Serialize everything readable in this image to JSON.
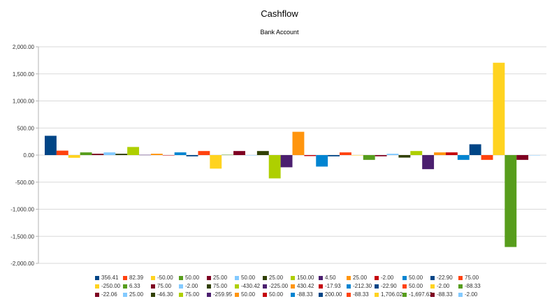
{
  "chart_data": {
    "type": "bar",
    "title": "Cashflow",
    "subtitle": "Bank Account",
    "ylim": [
      -2000,
      2000
    ],
    "yticks": [
      2000,
      1500,
      1000,
      500,
      0,
      -500,
      -1000,
      -1500,
      -2000
    ],
    "ytick_labels": [
      "2,000.00",
      "1,500.00",
      "1,000.00",
      "500.00",
      "0.00",
      "-500.00",
      "-1,000.00",
      "-1,500.00",
      "-2,000.00"
    ],
    "grid": true,
    "legend_position": "bottom",
    "palette": [
      "#004586",
      "#ff420e",
      "#ffd320",
      "#579d1c",
      "#7e0021",
      "#83caff",
      "#314004",
      "#aecf00",
      "#4b1f6f",
      "#ff950e",
      "#c5000b",
      "#0084d1"
    ],
    "series": [
      {
        "name": "356.41",
        "value": 356.41
      },
      {
        "name": "82.39",
        "value": 82.39
      },
      {
        "name": "-50.00",
        "value": -50
      },
      {
        "name": "50.00",
        "value": 50
      },
      {
        "name": "25.00",
        "value": 25
      },
      {
        "name": "50.00",
        "value": 50
      },
      {
        "name": "25.00",
        "value": 25
      },
      {
        "name": "150.00",
        "value": 150
      },
      {
        "name": "4.50",
        "value": 4.5
      },
      {
        "name": "25.00",
        "value": 25
      },
      {
        "name": "-2.00",
        "value": -2
      },
      {
        "name": "50.00",
        "value": 50
      },
      {
        "name": "-22.90",
        "value": -22.9
      },
      {
        "name": "75.00",
        "value": 75
      },
      {
        "name": "-250.00",
        "value": -250
      },
      {
        "name": "6.33",
        "value": 6.33
      },
      {
        "name": "75.00",
        "value": 75
      },
      {
        "name": "-2.00",
        "value": -2
      },
      {
        "name": "75.00",
        "value": 75
      },
      {
        "name": "-430.42",
        "value": -430.42
      },
      {
        "name": "-225.00",
        "value": -225
      },
      {
        "name": "430.42",
        "value": 430.42
      },
      {
        "name": "-17.93",
        "value": -17.93
      },
      {
        "name": "-212.30",
        "value": -212.3
      },
      {
        "name": "-22.90",
        "value": -22.9
      },
      {
        "name": "50.00",
        "value": 50
      },
      {
        "name": "-2.00",
        "value": -2
      },
      {
        "name": "-88.33",
        "value": -88.33
      },
      {
        "name": "-22.06",
        "value": -22.06
      },
      {
        "name": "25.00",
        "value": 25
      },
      {
        "name": "-46.30",
        "value": -46.3
      },
      {
        "name": "75.00",
        "value": 75
      },
      {
        "name": "-259.95",
        "value": -259.95
      },
      {
        "name": "50.00",
        "value": 50
      },
      {
        "name": "50.00",
        "value": 50
      },
      {
        "name": "-88.33",
        "value": -88.33
      },
      {
        "name": "200.00",
        "value": 200
      },
      {
        "name": "-88.33",
        "value": -88.33
      },
      {
        "name": "1,706.02",
        "value": 1706.02
      },
      {
        "name": "-1,697.63",
        "value": -1697.63
      },
      {
        "name": "-88.33",
        "value": -88.33
      },
      {
        "name": "-2.00",
        "value": -2
      }
    ]
  }
}
